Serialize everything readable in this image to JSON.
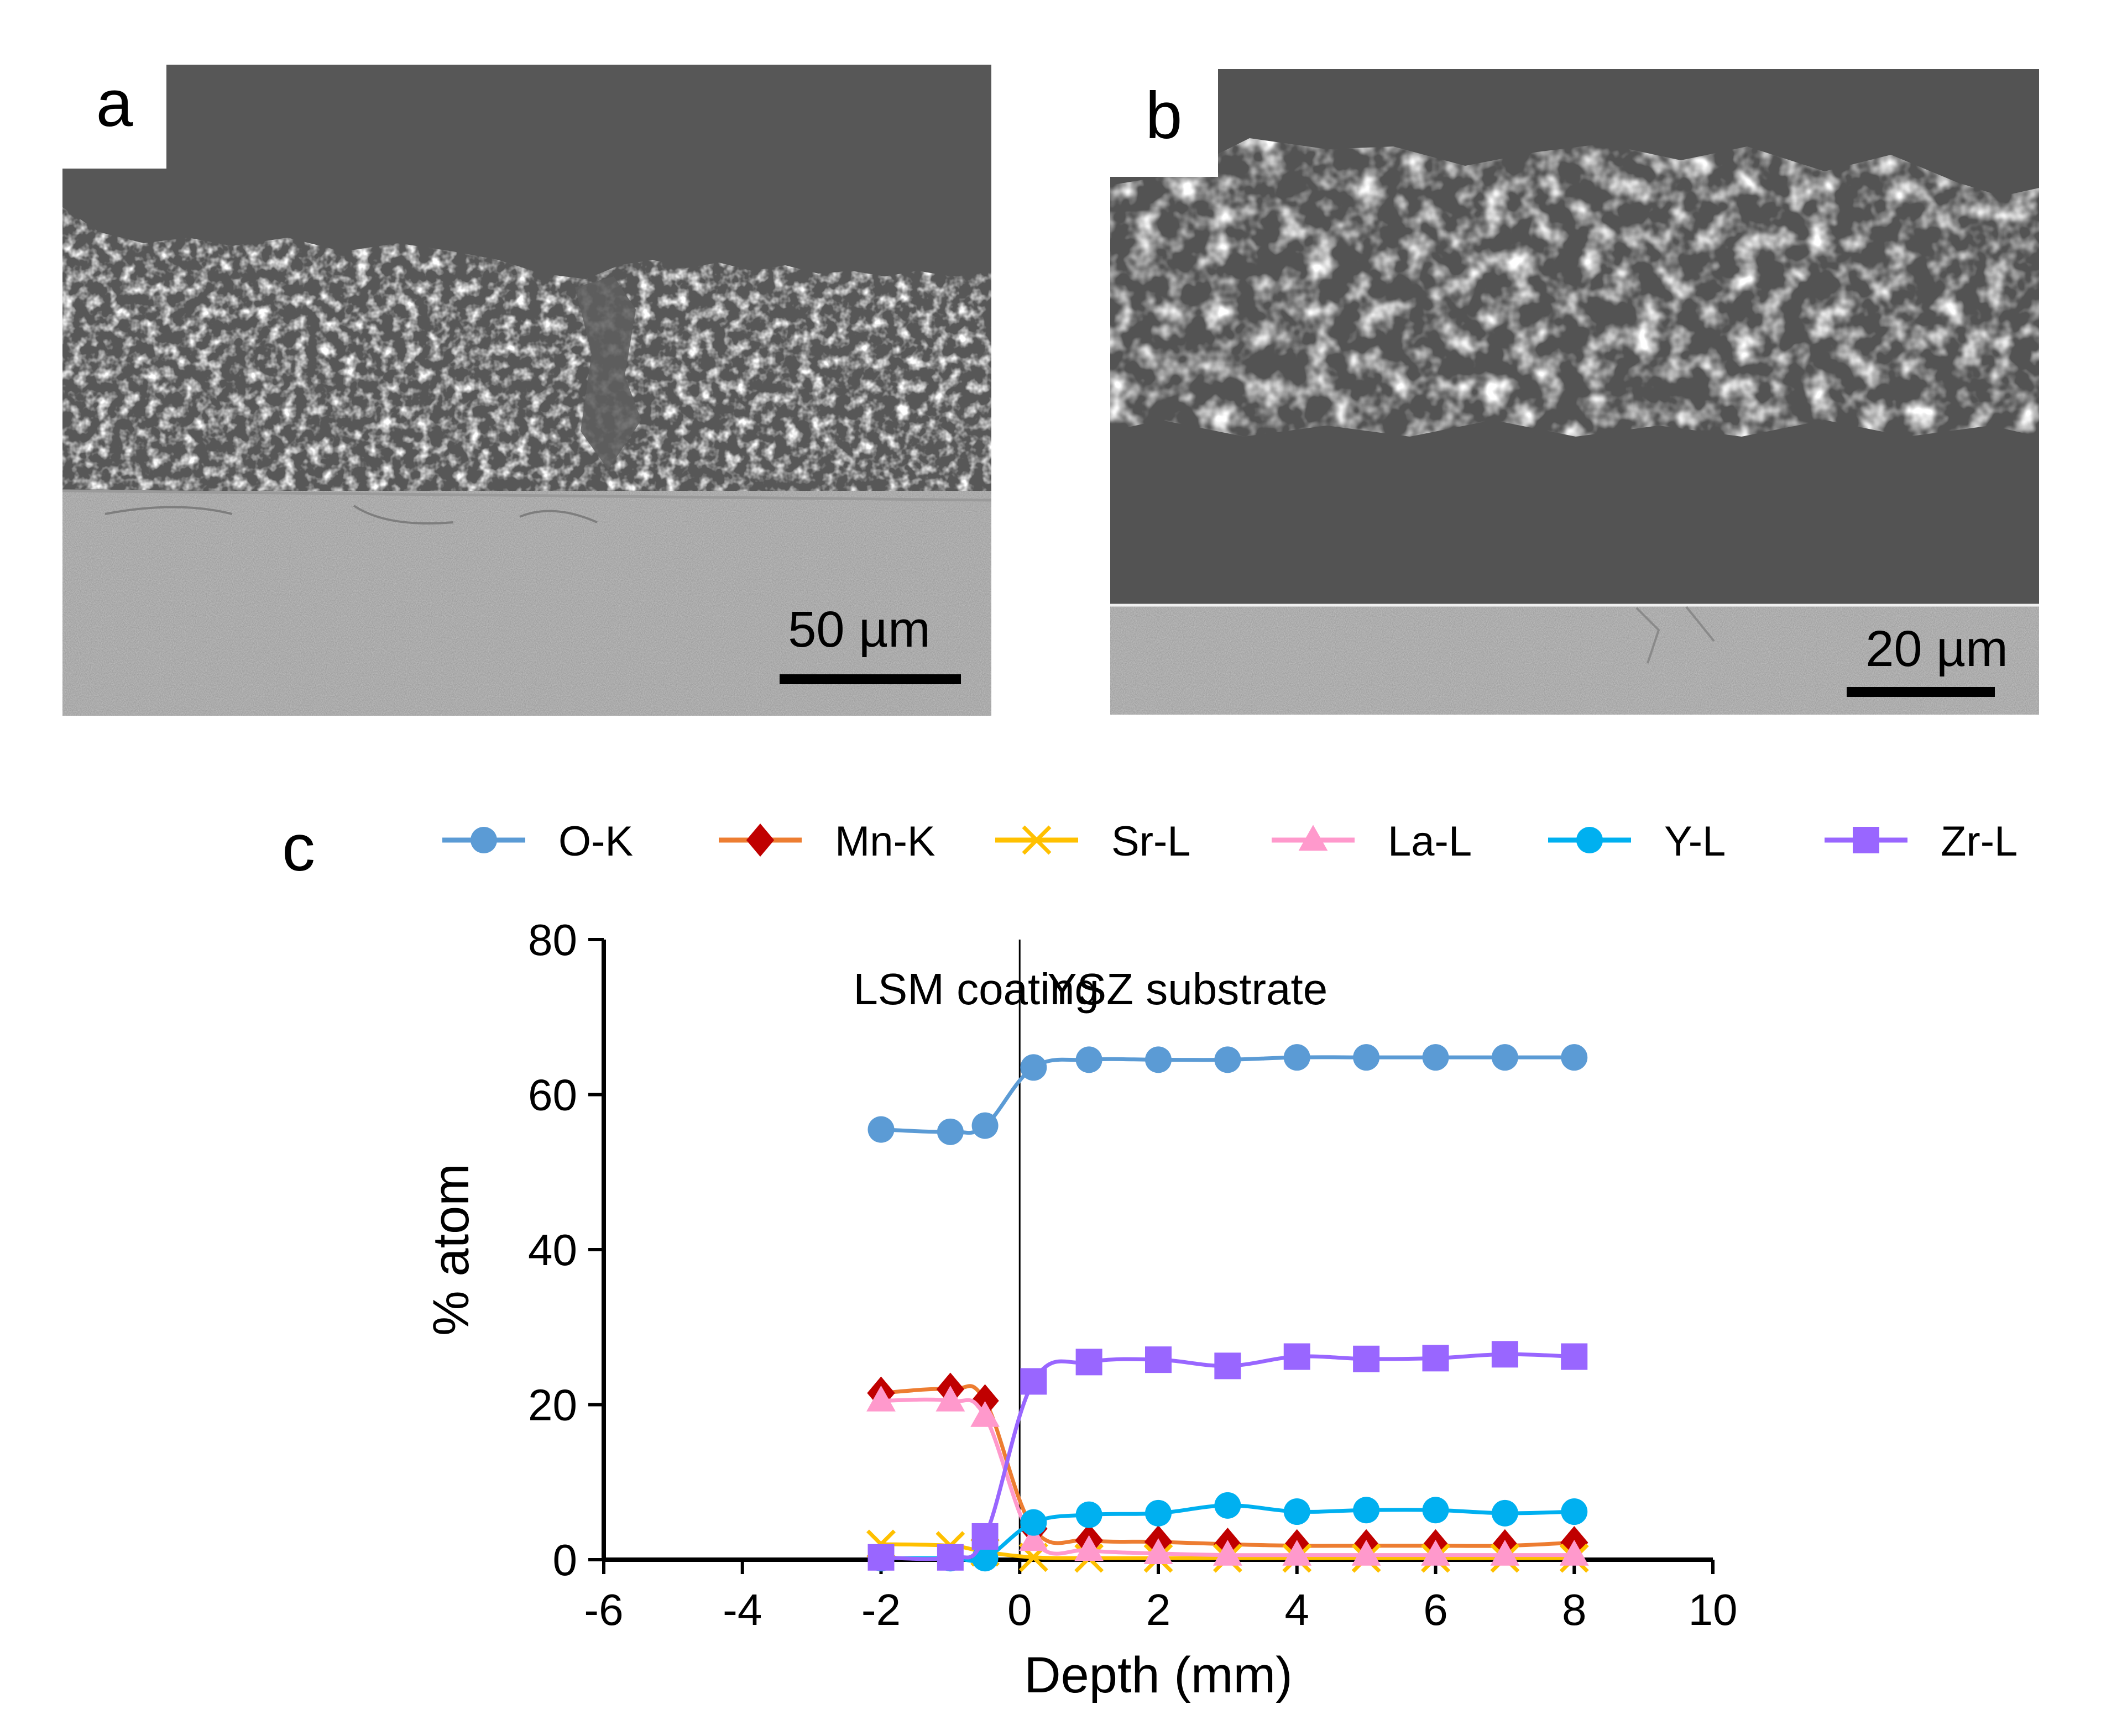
{
  "panels": {
    "a": {
      "label": "a",
      "scale_bar": "50 µm"
    },
    "b": {
      "label": "b",
      "scale_bar": "20 µm"
    },
    "c": {
      "label": "c"
    }
  },
  "chart_data": {
    "type": "line",
    "title": "",
    "xlabel": "Depth (mm)",
    "ylabel": "% atom",
    "xlim": [
      -6,
      10
    ],
    "ylim": [
      0,
      80
    ],
    "xticks": [
      -6,
      -4,
      -2,
      0,
      2,
      4,
      6,
      8,
      10
    ],
    "yticks": [
      0,
      20,
      40,
      60,
      80
    ],
    "grid": false,
    "legend_position": "top",
    "x": [
      -2,
      -1,
      -0.5,
      0.2,
      1,
      2,
      3,
      4,
      5,
      6,
      7,
      8
    ],
    "annotations": [
      {
        "text": "LSM coating",
        "x": -2.4,
        "y": 73.5
      },
      {
        "text": "YSZ substrate",
        "x": 0.4,
        "y": 73.5
      }
    ],
    "vline": {
      "x": 0
    },
    "series": [
      {
        "name": "O-K",
        "color": "#5b9bd5",
        "marker": "circle",
        "values": [
          55.5,
          55.2,
          56.0,
          63.5,
          64.5,
          64.5,
          64.5,
          64.8,
          64.8,
          64.8,
          64.8,
          64.8
        ]
      },
      {
        "name": "Mn-K",
        "color": "#ed7d31",
        "marker_color": "#c00000",
        "marker": "diamond",
        "values": [
          21.5,
          22.0,
          20.5,
          4.0,
          2.5,
          2.3,
          2.0,
          1.8,
          1.8,
          1.8,
          1.8,
          2.2
        ]
      },
      {
        "name": "Sr-L",
        "color": "#ffc000",
        "marker": "x",
        "values": [
          2.0,
          1.8,
          1.0,
          0.3,
          0.2,
          0.2,
          0.2,
          0.2,
          0.2,
          0.2,
          0.2,
          0.2
        ]
      },
      {
        "name": "La-L",
        "color": "#ff99cc",
        "marker": "triangle",
        "values": [
          20.5,
          20.5,
          18.5,
          2.5,
          1.2,
          0.8,
          0.6,
          0.6,
          0.6,
          0.6,
          0.6,
          0.6
        ]
      },
      {
        "name": "Y-L",
        "color": "#00b0f0",
        "marker": "circle",
        "values": [
          0.2,
          0.2,
          0.2,
          4.8,
          5.8,
          6.0,
          7.0,
          6.2,
          6.4,
          6.4,
          6.0,
          6.2
        ]
      },
      {
        "name": "Zr-L",
        "color": "#9966ff",
        "marker": "square",
        "values": [
          0.3,
          0.3,
          3.0,
          23.0,
          25.5,
          25.8,
          25.0,
          26.2,
          25.9,
          26.0,
          26.5,
          26.2
        ]
      }
    ]
  }
}
